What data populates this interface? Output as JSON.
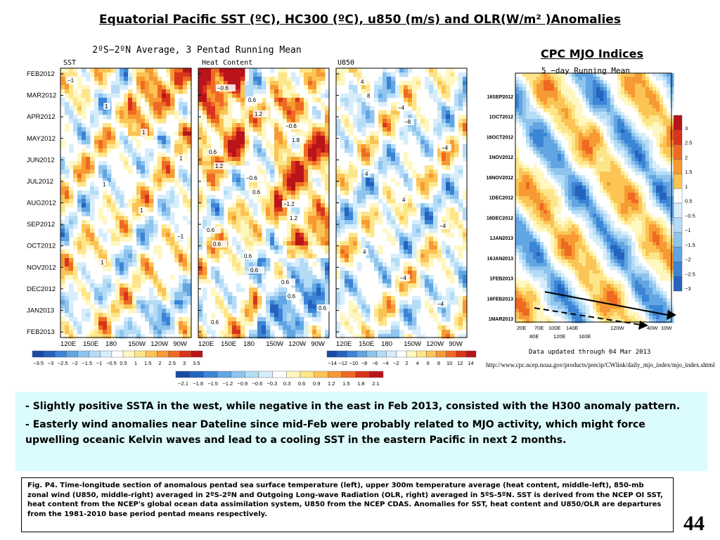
{
  "title": "Equatorial Pacific SST (ºC), HC300 (ºC), u850  (m/s) and OLR(W/m² )Anomalies",
  "figure": {
    "title": "2ºS−2ºN Average, 3 Pentad Running Mean",
    "panels": [
      {
        "label": "SST",
        "contours": [
          "−1",
          "1",
          "1",
          "1",
          "1",
          "1",
          "−1",
          "1"
        ]
      },
      {
        "label": "Heat Content",
        "contours": [
          "−0.6",
          "1.2",
          "1.8",
          "1.2",
          "0.6",
          "1.2",
          "0.6",
          "0.6",
          "0.6",
          "0.6",
          "0.6",
          "−0.6",
          "0.6",
          "−0.6",
          "−1.2",
          "0.6",
          "0.6",
          "0.6",
          "0.6"
        ]
      },
      {
        "label": "U850",
        "contours": [
          "8",
          "−8",
          "−4",
          "4",
          "4",
          "−4",
          "4",
          "−4",
          "−4",
          "4",
          "−4"
        ]
      }
    ],
    "time_labels": [
      "FEB2012",
      "MAR2012",
      "APR2012",
      "MAY2012",
      "JUN2012",
      "JUL2012",
      "AUG2012",
      "SEP2012",
      "OCT2012",
      "NOV2012",
      "DEC2012",
      "JAN2013",
      "FEB2013"
    ],
    "lon_labels": [
      "120E",
      "150E",
      "180",
      "150W",
      "120W",
      "90W"
    ],
    "colorbars": {
      "sst": {
        "labels": [
          "−3.5",
          "−3",
          "−2.5",
          "−2",
          "−1.5",
          "−1",
          "−0.5",
          "0.5",
          "1",
          "1.5",
          "2",
          "2.5",
          "3",
          "3.5"
        ]
      },
      "u850": {
        "labels": [
          "−14",
          "−12",
          "−10",
          "−8",
          "−6",
          "−4",
          "−2",
          "2",
          "4",
          "6",
          "8",
          "10",
          "12",
          "14"
        ]
      },
      "hc": {
        "labels": [
          "−2.1",
          "−1.8",
          "−1.5",
          "−1.2",
          "−0.9",
          "−0.6",
          "−0.3",
          "0.3",
          "0.6",
          "0.9",
          "1.2",
          "1.5",
          "1.8",
          "2.1"
        ]
      }
    },
    "colors": {
      "warm": [
        "#fff7c0",
        "#fde58a",
        "#fbc455",
        "#f79a33",
        "#ee6a22",
        "#d9331c",
        "#b8141a"
      ],
      "cool": [
        "#d7edfb",
        "#b4dcf6",
        "#8ec4ee",
        "#62a5e3",
        "#3b84d6",
        "#2563bf",
        "#1a4aa3"
      ]
    }
  },
  "mjo": {
    "title": "CPC MJO Indices",
    "subtitle": "5 −day Running Mean",
    "time_labels": [
      "16SEP2012",
      "1OCT2012",
      "16OCT2012",
      "1NOV2012",
      "16NOV2012",
      "1DEC2012",
      "16DEC2012",
      "1JAN2013",
      "16JAN2013",
      "1FEB2013",
      "16FEB2013",
      "1MAR2013"
    ],
    "lon_labels_top": [
      "20E",
      "70E",
      "100E",
      "140E",
      "120W",
      "40W",
      "10W"
    ],
    "lon_labels_bottom": [
      "80E",
      "120E",
      "160E"
    ],
    "colorbar_labels": [
      "3",
      "2.5",
      "2",
      "1.5",
      "1",
      "0.5",
      "−0.5",
      "−1",
      "−1.5",
      "−2",
      "−2.5",
      "−3"
    ],
    "updated": "Data updated through 04 Mar 2013",
    "url": "http://www.cpc.ncep.noaa.gov/products/precip/CWlink/daily_mjo_index/mjo_index.shtml"
  },
  "summary": [
    {
      "dash": "- ",
      "text": "Slightly positive SSTA in the west, while negative in the east in Feb 2013, consisted with the H300 anomaly pattern."
    },
    {
      "dash": "- ",
      "text": "Easterly wind anomalies near Dateline since mid-Feb were probably related to MJO activity, which might force upwelling oceanic Kelvin waves and lead to a cooling SST in the eastern Pacific in next 2 months."
    }
  ],
  "caption": "Fig. P4. Time-longitude section of anomalous pentad sea surface temperature (left), upper 300m temperature average (heat content, middle-left), 850-mb zonal wind (U850, middle-right) averaged in 2ºS-2ºN and Outgoing Long-wave Radiation (OLR, right) averaged in 5ºS-5ºN. SST is derived from the NCEP OI SST, heat content from the NCEP's global ocean data assimilation system, U850 from the NCEP CDAS. Anomalies for SST, heat content and U850/OLR are departures from the 1981-2010 base period pentad means respectively.",
  "page_number": "44"
}
